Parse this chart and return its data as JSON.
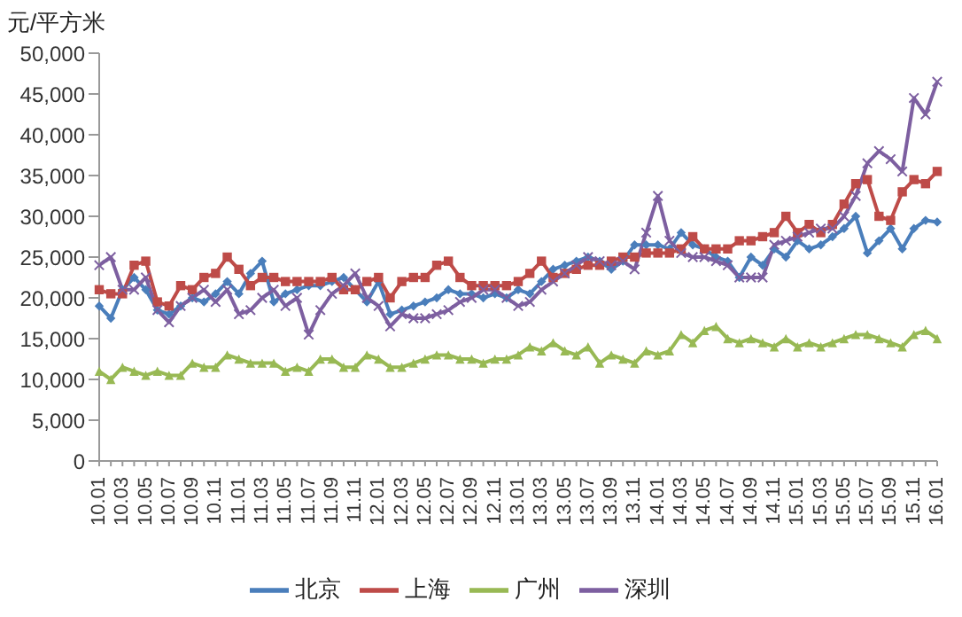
{
  "chart_data": {
    "type": "line",
    "ylabel": "元/平方米",
    "categories": [
      "10.01",
      null,
      "10.03",
      null,
      "10.05",
      null,
      "10.07",
      null,
      "10.09",
      null,
      "10.11",
      null,
      "11.01",
      null,
      "11.03",
      null,
      "11.05",
      null,
      "11.07",
      null,
      "11.09",
      null,
      "11.11",
      null,
      "12.01",
      null,
      "12.03",
      null,
      "12.05",
      null,
      "12.07",
      null,
      "12.09",
      null,
      "12.11",
      null,
      "13.01",
      null,
      "13.03",
      null,
      "13.05",
      null,
      "13.07",
      null,
      "13.09",
      null,
      "13.11",
      null,
      "14.01",
      null,
      "14.03",
      null,
      "14.05",
      null,
      "14.07",
      null,
      "14.09",
      null,
      "14.11",
      null,
      "15.01",
      null,
      "15.03",
      null,
      "15.05",
      null,
      "15.07",
      null,
      "15.09",
      null,
      "15.11",
      null,
      "16.01"
    ],
    "series": [
      {
        "name": "北京",
        "color": "#4a7ebb",
        "marker": "diamond",
        "values": [
          19000,
          17500,
          21000,
          22500,
          21000,
          18500,
          18000,
          19000,
          20000,
          19500,
          20500,
          22000,
          20500,
          23000,
          24500,
          19500,
          20500,
          21000,
          21500,
          21500,
          22000,
          22500,
          21000,
          19500,
          22000,
          18000,
          18500,
          19000,
          19500,
          20000,
          21000,
          20500,
          20500,
          20000,
          20500,
          20000,
          21000,
          20500,
          22000,
          23500,
          24000,
          24500,
          25000,
          24500,
          23500,
          24500,
          26500,
          26500,
          26500,
          26000,
          28000,
          26500,
          26000,
          25000,
          24500,
          22500,
          25000,
          24000,
          26000,
          25000,
          27000,
          26000,
          26500,
          27500,
          28500,
          30000,
          25500,
          27000,
          28500,
          26000,
          28500,
          29500,
          29300
        ]
      },
      {
        "name": "上海",
        "color": "#be4b48",
        "marker": "square",
        "values": [
          21000,
          20500,
          20500,
          24000,
          24500,
          19500,
          19000,
          21500,
          21000,
          22500,
          23000,
          25000,
          23500,
          21500,
          22500,
          22500,
          22000,
          22000,
          22000,
          22000,
          22500,
          21000,
          21000,
          22000,
          22500,
          20000,
          22000,
          22500,
          22500,
          24000,
          24500,
          22500,
          21500,
          21500,
          21500,
          21500,
          22000,
          23000,
          24500,
          22500,
          23000,
          23500,
          24000,
          24000,
          24500,
          25000,
          25000,
          25500,
          25500,
          25500,
          26000,
          27500,
          26000,
          26000,
          26000,
          27000,
          27000,
          27500,
          28000,
          30000,
          28000,
          29000,
          28000,
          29000,
          31500,
          34000,
          34500,
          30000,
          29500,
          33000,
          34500,
          34000,
          35500
        ]
      },
      {
        "name": "广州",
        "color": "#98b954",
        "marker": "triangle",
        "values": [
          11000,
          10000,
          11500,
          11000,
          10500,
          11000,
          10500,
          10500,
          12000,
          11500,
          11500,
          13000,
          12500,
          12000,
          12000,
          12000,
          11000,
          11500,
          11000,
          12500,
          12500,
          11500,
          11500,
          13000,
          12500,
          11500,
          11500,
          12000,
          12500,
          13000,
          13000,
          12500,
          12500,
          12000,
          12500,
          12500,
          13000,
          14000,
          13500,
          14500,
          13500,
          13000,
          14000,
          12000,
          13000,
          12500,
          12000,
          13500,
          13000,
          13500,
          15500,
          14500,
          16000,
          16500,
          15000,
          14500,
          15000,
          14500,
          14000,
          15000,
          14000,
          14500,
          14000,
          14500,
          15000,
          15500,
          15500,
          15000,
          14500,
          14000,
          15500,
          16000,
          15000
        ]
      },
      {
        "name": "深圳",
        "color": "#7d5fa0",
        "marker": "cross",
        "values": [
          24000,
          25000,
          21000,
          21000,
          22500,
          18500,
          17000,
          19000,
          20000,
          21000,
          19500,
          21000,
          18000,
          18500,
          20000,
          21000,
          19000,
          20000,
          15500,
          18500,
          20500,
          21500,
          23000,
          20000,
          19000,
          16500,
          18000,
          17500,
          17500,
          18000,
          18500,
          19500,
          20000,
          21000,
          21000,
          20000,
          19000,
          19500,
          21000,
          22000,
          23000,
          24000,
          25000,
          24500,
          24000,
          24500,
          23500,
          28000,
          32500,
          27000,
          25500,
          25000,
          25000,
          24500,
          24000,
          22500,
          22500,
          22500,
          26500,
          27000,
          27500,
          28000,
          28500,
          28500,
          30000,
          32500,
          36500,
          38000,
          37000,
          35500,
          44500,
          42500,
          46500
        ]
      }
    ],
    "ylim": [
      0,
      50000
    ],
    "yticks": [
      {
        "value": 0,
        "label": "0"
      },
      {
        "value": 5000,
        "label": "5,000"
      },
      {
        "value": 10000,
        "label": "10,000"
      },
      {
        "value": 15000,
        "label": "15,000"
      },
      {
        "value": 20000,
        "label": "20,000"
      },
      {
        "value": 25000,
        "label": "25,000"
      },
      {
        "value": 30000,
        "label": "30,000"
      },
      {
        "value": 35000,
        "label": "35,000"
      },
      {
        "value": 40000,
        "label": "40,000"
      },
      {
        "value": 45000,
        "label": "45,000"
      },
      {
        "value": 50000,
        "label": "50,000"
      }
    ],
    "grid": false,
    "legend": "bottom",
    "line_style": "solid"
  }
}
